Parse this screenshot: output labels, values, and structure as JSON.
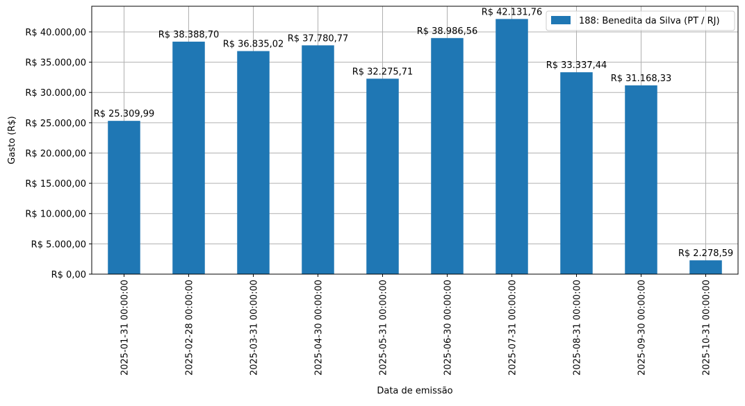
{
  "chart_data": {
    "type": "bar",
    "categories": [
      "2025-01-31 00:00:00",
      "2025-02-28 00:00:00",
      "2025-03-31 00:00:00",
      "2025-04-30 00:00:00",
      "2025-05-31 00:00:00",
      "2025-06-30 00:00:00",
      "2025-07-31 00:00:00",
      "2025-08-31 00:00:00",
      "2025-09-30 00:00:00",
      "2025-10-31 00:00:00"
    ],
    "series": [
      {
        "name": "188: Benedita da Silva (PT / RJ)",
        "values": [
          25309.99,
          38388.7,
          36835.02,
          37780.77,
          32275.71,
          38986.56,
          42131.76,
          33337.44,
          31168.33,
          2278.59
        ],
        "value_labels": [
          "R$ 25.309,99",
          "R$ 38.388,70",
          "R$ 36.835,02",
          "R$ 37.780,77",
          "R$ 32.275,71",
          "R$ 38.986,56",
          "R$ 42.131,76",
          "R$ 33.337,44",
          "R$ 31.168,33",
          "R$ 2.278,59"
        ]
      }
    ],
    "xlabel": "Data de emissão",
    "ylabel": "Gasto (R$)",
    "ylim": [
      0,
      44236.85
    ],
    "yticks": [
      0,
      5000,
      10000,
      15000,
      20000,
      25000,
      30000,
      35000,
      40000
    ],
    "ytick_labels": [
      "R$ 0,00",
      "R$ 5.000,00",
      "R$ 10.000,00",
      "R$ 15.000,00",
      "R$ 20.000,00",
      "R$ 25.000,00",
      "R$ 30.000,00",
      "R$ 35.000,00",
      "R$ 40.000,00"
    ],
    "grid": true,
    "legend_position": "top-right",
    "colors": {
      "bar": "#1f77b4",
      "grid": "#b0b0b0",
      "axis": "#000000"
    }
  }
}
